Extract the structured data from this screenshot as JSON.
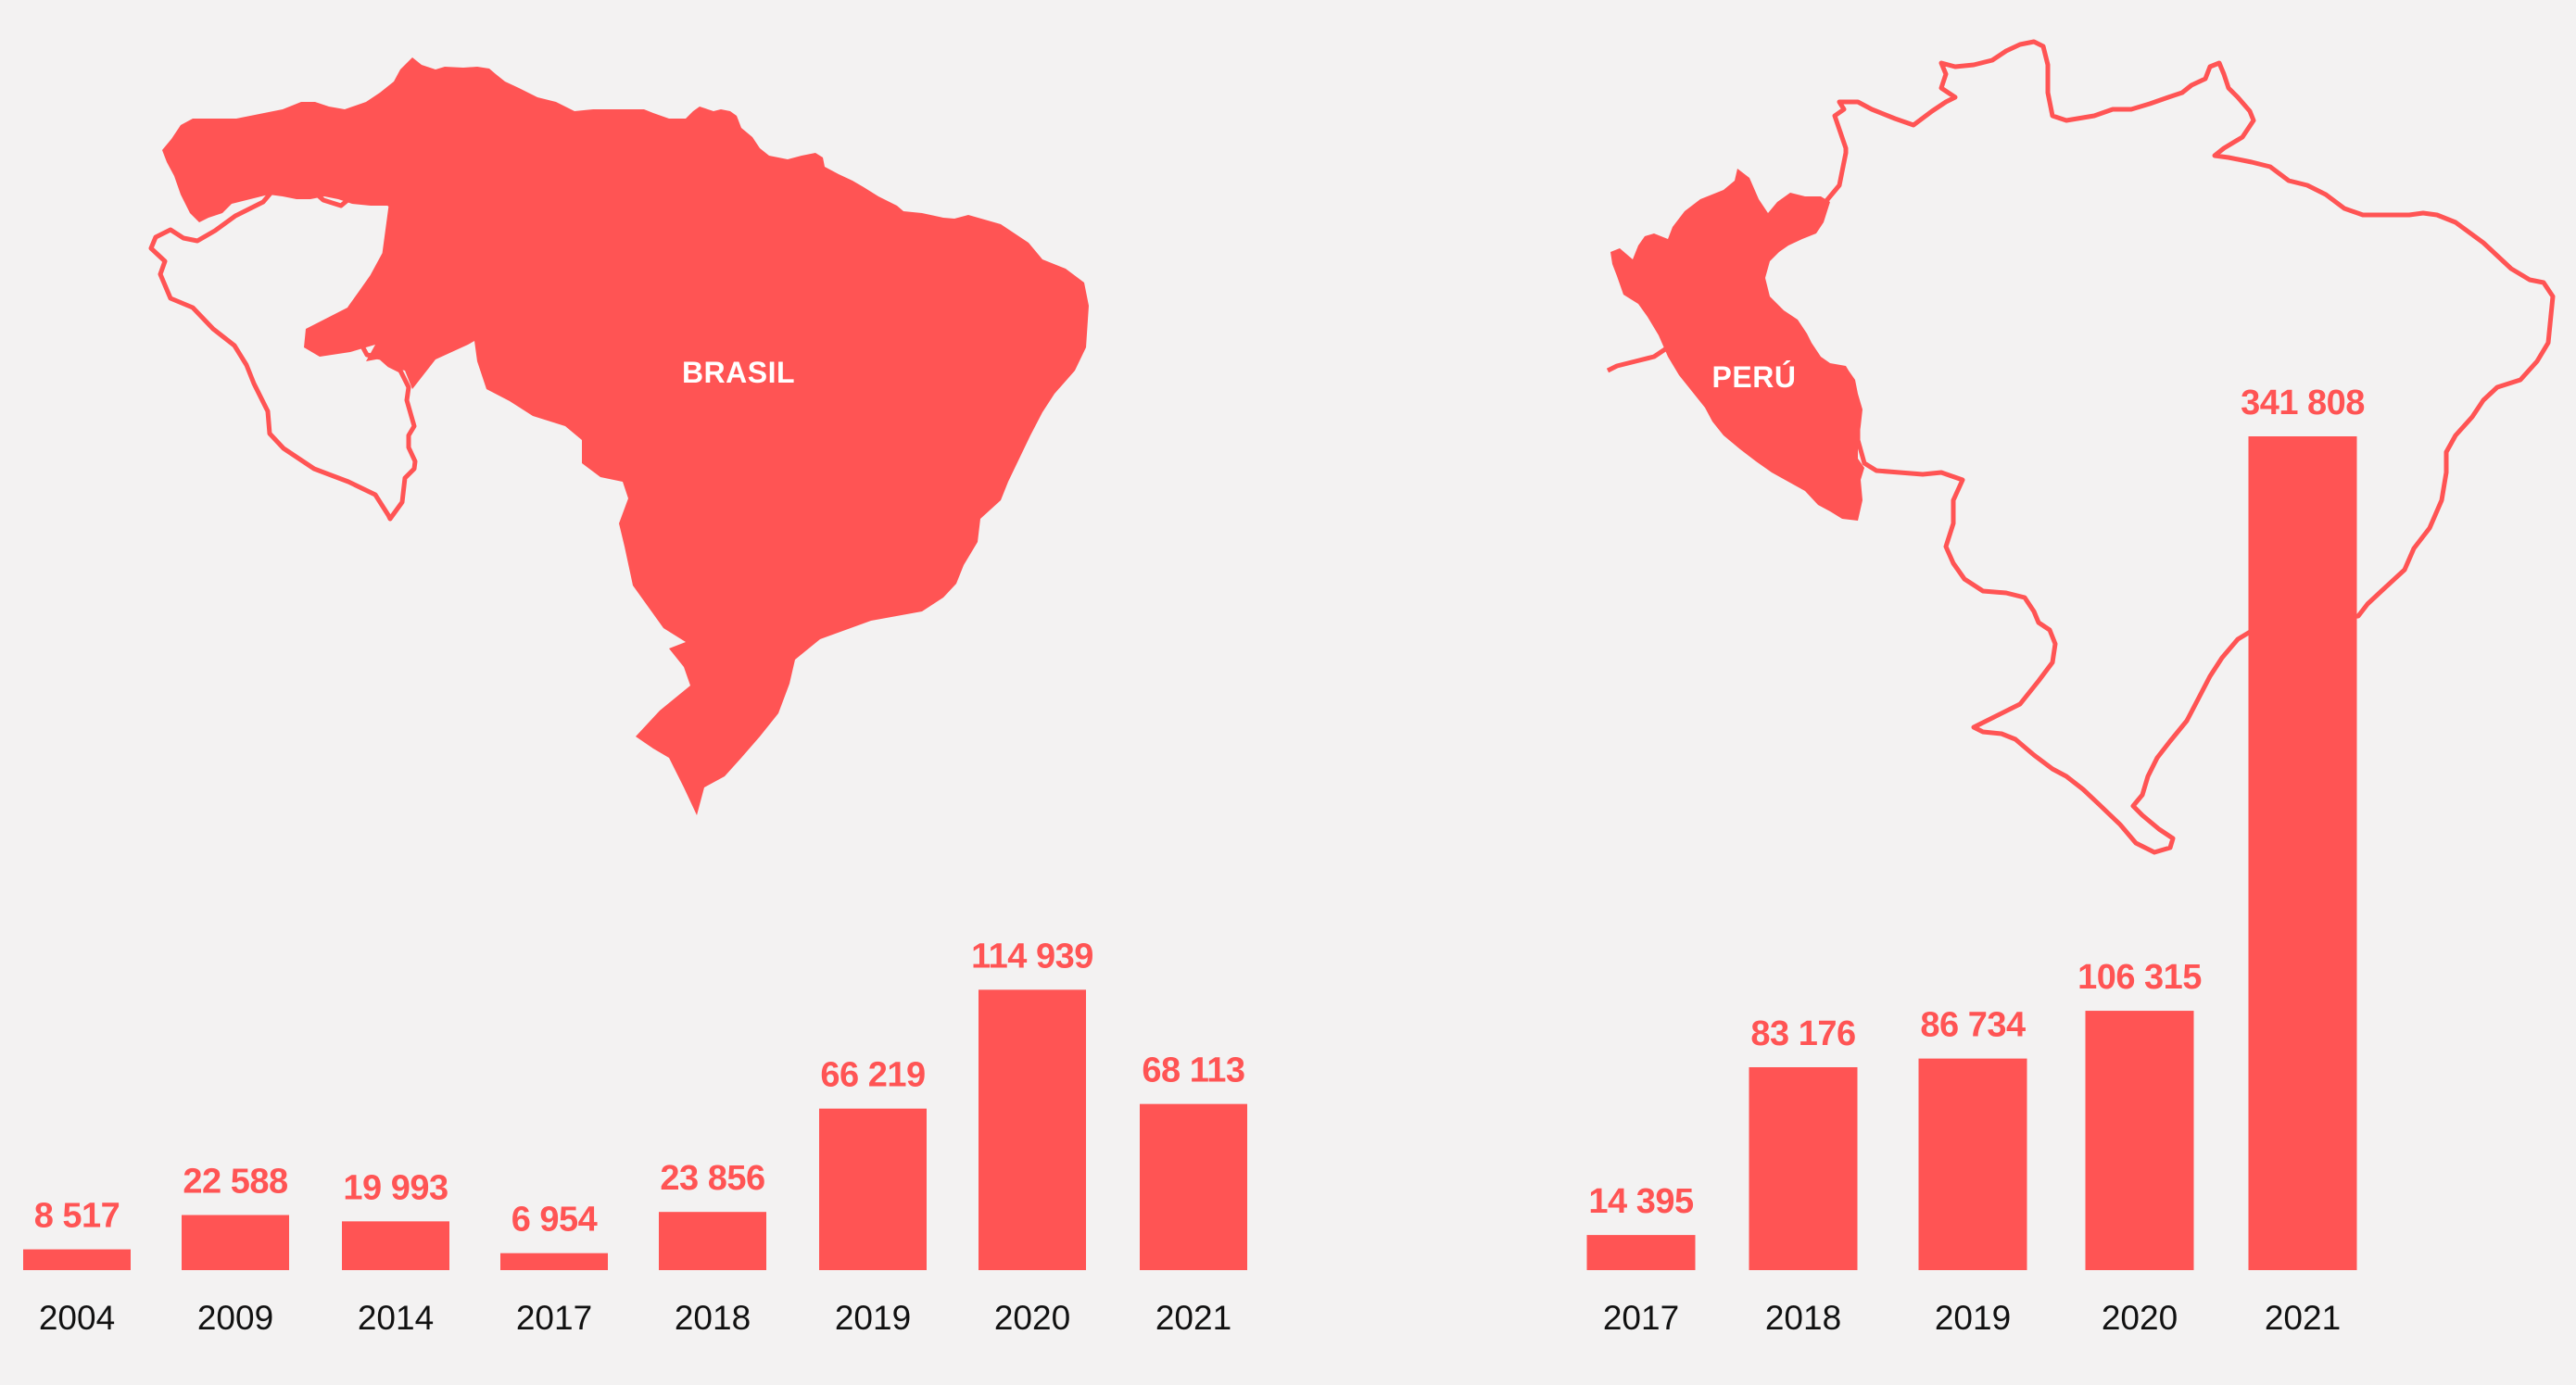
{
  "colors": {
    "accent": "#ff5454",
    "background": "#f3f2f2",
    "text": "#111111"
  },
  "maps": {
    "left": {
      "label": "BRASIL",
      "highlight": "brazil"
    },
    "right": {
      "label": "PERÚ",
      "highlight": "peru"
    }
  },
  "chart_data": [
    {
      "type": "bar",
      "title": "",
      "xlabel": "",
      "ylabel": "",
      "categories": [
        "2004",
        "2009",
        "2014",
        "2017",
        "2018",
        "2019",
        "2020",
        "2021"
      ],
      "values": [
        8517,
        22588,
        19993,
        6954,
        23856,
        66219,
        114939,
        68113
      ],
      "labels": [
        "8 517",
        "22 588",
        "19 993",
        "6 954",
        "23 856",
        "66 219",
        "114 939",
        "68 113"
      ],
      "ylim": [
        0,
        341808
      ],
      "grid": false,
      "legend": "none"
    },
    {
      "type": "bar",
      "title": "",
      "xlabel": "",
      "ylabel": "",
      "categories": [
        "2017",
        "2018",
        "2019",
        "2020",
        "2021"
      ],
      "values": [
        14395,
        83176,
        86734,
        106315,
        341808
      ],
      "labels": [
        "14 395",
        "83 176",
        "86 734",
        "106 315",
        "341 808"
      ],
      "ylim": [
        0,
        341808
      ],
      "grid": false,
      "legend": "none"
    }
  ]
}
